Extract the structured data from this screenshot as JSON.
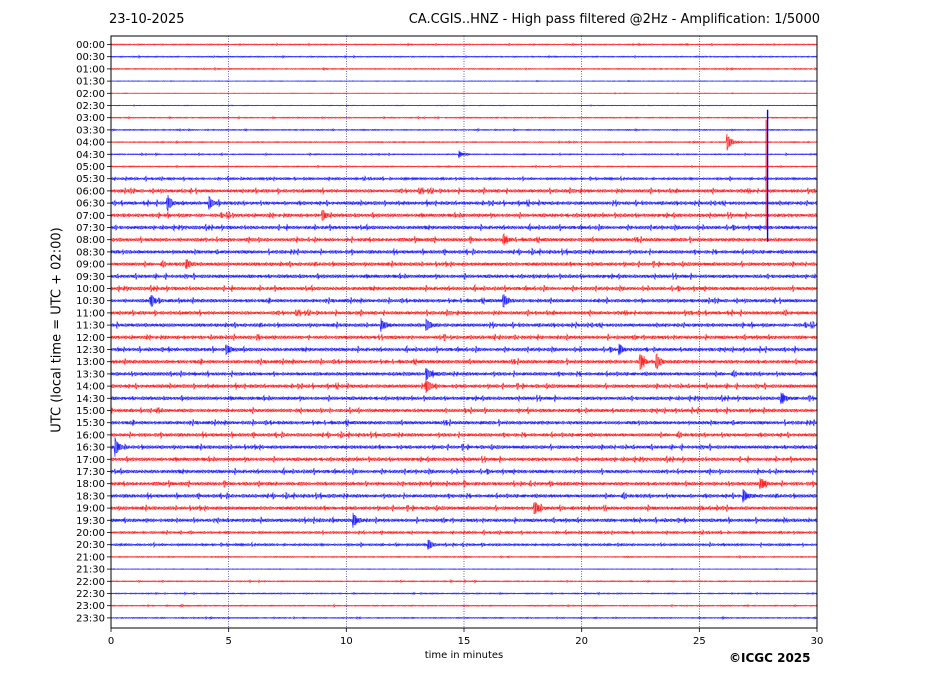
{
  "header": {
    "date": "23-10-2025",
    "title": "CA.CGIS..HNZ - High pass filtered @2Hz - Amplification: 1/5000"
  },
  "footer": {
    "copyright": "©ICGC 2025"
  },
  "colors": {
    "red": "#ff0000",
    "blue": "#0000ff"
  },
  "chart_data": {
    "type": "line",
    "title": "CA.CGIS..HNZ - High pass filtered @2Hz - Amplification: 1/5000",
    "xlabel": "time in minutes",
    "ylabel": "UTC (local time = UTC + 02:00)",
    "xlim": [
      0,
      30
    ],
    "x_ticks": [
      "0",
      "5",
      "10",
      "15",
      "20",
      "25",
      "30"
    ],
    "y_tick_labels": [
      "00:00",
      "00:30",
      "01:00",
      "01:30",
      "02:00",
      "02:30",
      "03:00",
      "03:30",
      "04:00",
      "04:30",
      "05:00",
      "05:30",
      "06:00",
      "06:30",
      "07:00",
      "07:30",
      "08:00",
      "08:30",
      "09:00",
      "09:30",
      "10:00",
      "10:30",
      "11:00",
      "11:30",
      "12:00",
      "12:30",
      "13:00",
      "13:30",
      "14:00",
      "14:30",
      "15:00",
      "15:30",
      "16:00",
      "16:30",
      "17:00",
      "17:30",
      "18:00",
      "18:30",
      "19:00",
      "19:30",
      "20:00",
      "20:30",
      "21:00",
      "21:30",
      "22:00",
      "22:30",
      "23:00",
      "23:30"
    ],
    "grid_x": true,
    "trace_colors": [
      "red",
      "blue"
    ],
    "trace_noise_level": [
      1,
      1,
      1,
      0.5,
      0.5,
      0.5,
      1,
      1,
      1,
      1,
      1,
      2,
      3,
      3,
      3,
      3,
      3,
      3,
      3,
      3,
      3,
      3,
      3,
      3,
      3,
      3,
      3,
      3,
      3,
      3,
      3,
      3,
      3,
      3,
      3,
      3,
      3,
      3,
      3,
      3,
      2,
      2,
      1,
      0.5,
      1,
      1,
      1,
      1
    ],
    "events": [
      {
        "row": "04:00",
        "x": 26.2,
        "amp": 9
      },
      {
        "row": "04:30",
        "x": 14.8,
        "amp": 5
      },
      {
        "row": "06:30",
        "x": 2.4,
        "amp": 9
      },
      {
        "row": "06:30",
        "x": 4.2,
        "amp": 6
      },
      {
        "row": "07:00",
        "x": 9.0,
        "amp": 5
      },
      {
        "row": "08:00",
        "x": 16.7,
        "amp": 5
      },
      {
        "row": "09:00",
        "x": 3.2,
        "amp": 6
      },
      {
        "row": "10:30",
        "x": 1.7,
        "amp": 6
      },
      {
        "row": "10:30",
        "x": 16.7,
        "amp": 6
      },
      {
        "row": "11:30",
        "x": 11.5,
        "amp": 6
      },
      {
        "row": "11:30",
        "x": 13.4,
        "amp": 6
      },
      {
        "row": "12:30",
        "x": 4.9,
        "amp": 7
      },
      {
        "row": "12:30",
        "x": 21.6,
        "amp": 6
      },
      {
        "row": "13:00",
        "x": 22.5,
        "amp": 8
      },
      {
        "row": "13:00",
        "x": 23.2,
        "amp": 8
      },
      {
        "row": "13:30",
        "x": 13.4,
        "amp": 7
      },
      {
        "row": "14:00",
        "x": 13.4,
        "amp": 6
      },
      {
        "row": "14:30",
        "x": 28.5,
        "amp": 6
      },
      {
        "row": "16:30",
        "x": 0.2,
        "amp": 7
      },
      {
        "row": "18:00",
        "x": 27.6,
        "amp": 6
      },
      {
        "row": "18:30",
        "x": 26.9,
        "amp": 6
      },
      {
        "row": "19:00",
        "x": 18.0,
        "amp": 7
      },
      {
        "row": "19:30",
        "x": 10.3,
        "amp": 7
      },
      {
        "row": "20:30",
        "x": 13.5,
        "amp": 5
      }
    ],
    "spikes": [
      {
        "row_from": "03:00",
        "row_to": "08:00",
        "x": 27.9
      }
    ]
  }
}
